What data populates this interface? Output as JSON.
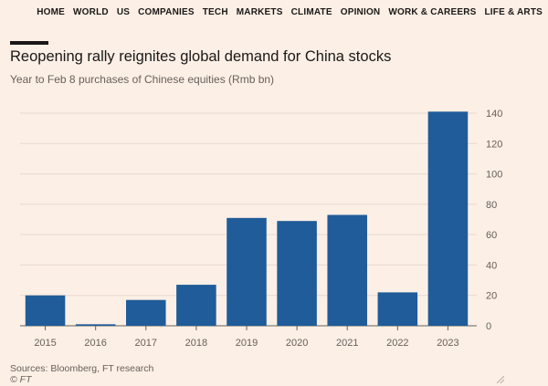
{
  "nav": {
    "items": [
      "HOME",
      "WORLD",
      "US",
      "COMPANIES",
      "TECH",
      "MARKETS",
      "CLIMATE",
      "OPINION",
      "WORK & CAREERS",
      "LIFE & ARTS"
    ]
  },
  "header": {
    "title": "Reopening rally reignites global demand for China stocks",
    "subtitle": "Year to Feb 8 purchases of Chinese equities (Rmb bn)"
  },
  "footer": {
    "source": "Sources: Bloomberg, FT research",
    "copyright": "© FT"
  },
  "chart_data": {
    "type": "bar",
    "categories": [
      "2015",
      "2016",
      "2017",
      "2018",
      "2019",
      "2020",
      "2021",
      "2022",
      "2023"
    ],
    "values": [
      20,
      1,
      17,
      27,
      71,
      69,
      73,
      22,
      141
    ],
    "ylim": [
      0,
      140
    ],
    "yticks": [
      0,
      20,
      40,
      60,
      80,
      100,
      120,
      140
    ],
    "y_axis_side": "right",
    "grid": true,
    "bar_color": "#1f5c99",
    "grid_color": "#e6d9ce",
    "axis_color": "#66605c"
  }
}
